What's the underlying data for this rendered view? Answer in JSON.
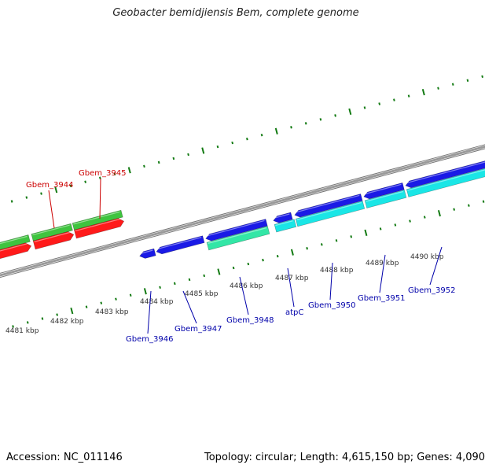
{
  "title": "Geobacter bemidjiensis Bem, complete genome",
  "footer": {
    "accession": "Accession: NC_011146",
    "summary": "Topology: circular; Length: 4,615,150 bp; Genes: 4,090"
  },
  "colors": {
    "backbone": "#9a9a9a",
    "tick": "#127a12",
    "label_red": "#cc0000",
    "label_blue": "#0000aa",
    "label_kbp": "#333333",
    "gene_green": "#3fc43f",
    "gene_red": "#ff1a1a",
    "gene_blue": "#1a1ae6",
    "gene_teal": "#33e6a6",
    "gene_cyan": "#1ae6e6"
  },
  "kbp_labels": [
    "4481 kbp",
    "4482 kbp",
    "4483 kbp",
    "4484 kbp",
    "4485 kbp",
    "4486 kbp",
    "4487 kbp",
    "4488 kbp",
    "4489 kbp",
    "4490 kbp"
  ],
  "gene_labels": [
    {
      "text": "Gbem_3944",
      "color": "red"
    },
    {
      "text": "Gbem_3945",
      "color": "red"
    },
    {
      "text": "Gbem_3946",
      "color": "blue"
    },
    {
      "text": "Gbem_3947",
      "color": "blue"
    },
    {
      "text": "Gbem_3948",
      "color": "blue"
    },
    {
      "text": "atpC",
      "color": "blue"
    },
    {
      "text": "Gbem_3950",
      "color": "blue"
    },
    {
      "text": "Gbem_3951",
      "color": "blue"
    },
    {
      "text": "Gbem_3952",
      "color": "blue"
    }
  ],
  "tracks": [
    {
      "name": "cds-forward",
      "color": "blue"
    },
    {
      "name": "gc-forward",
      "color": "teal"
    },
    {
      "name": "cds-reverse",
      "color": "red"
    },
    {
      "name": "gc-reverse",
      "color": "green"
    }
  ]
}
